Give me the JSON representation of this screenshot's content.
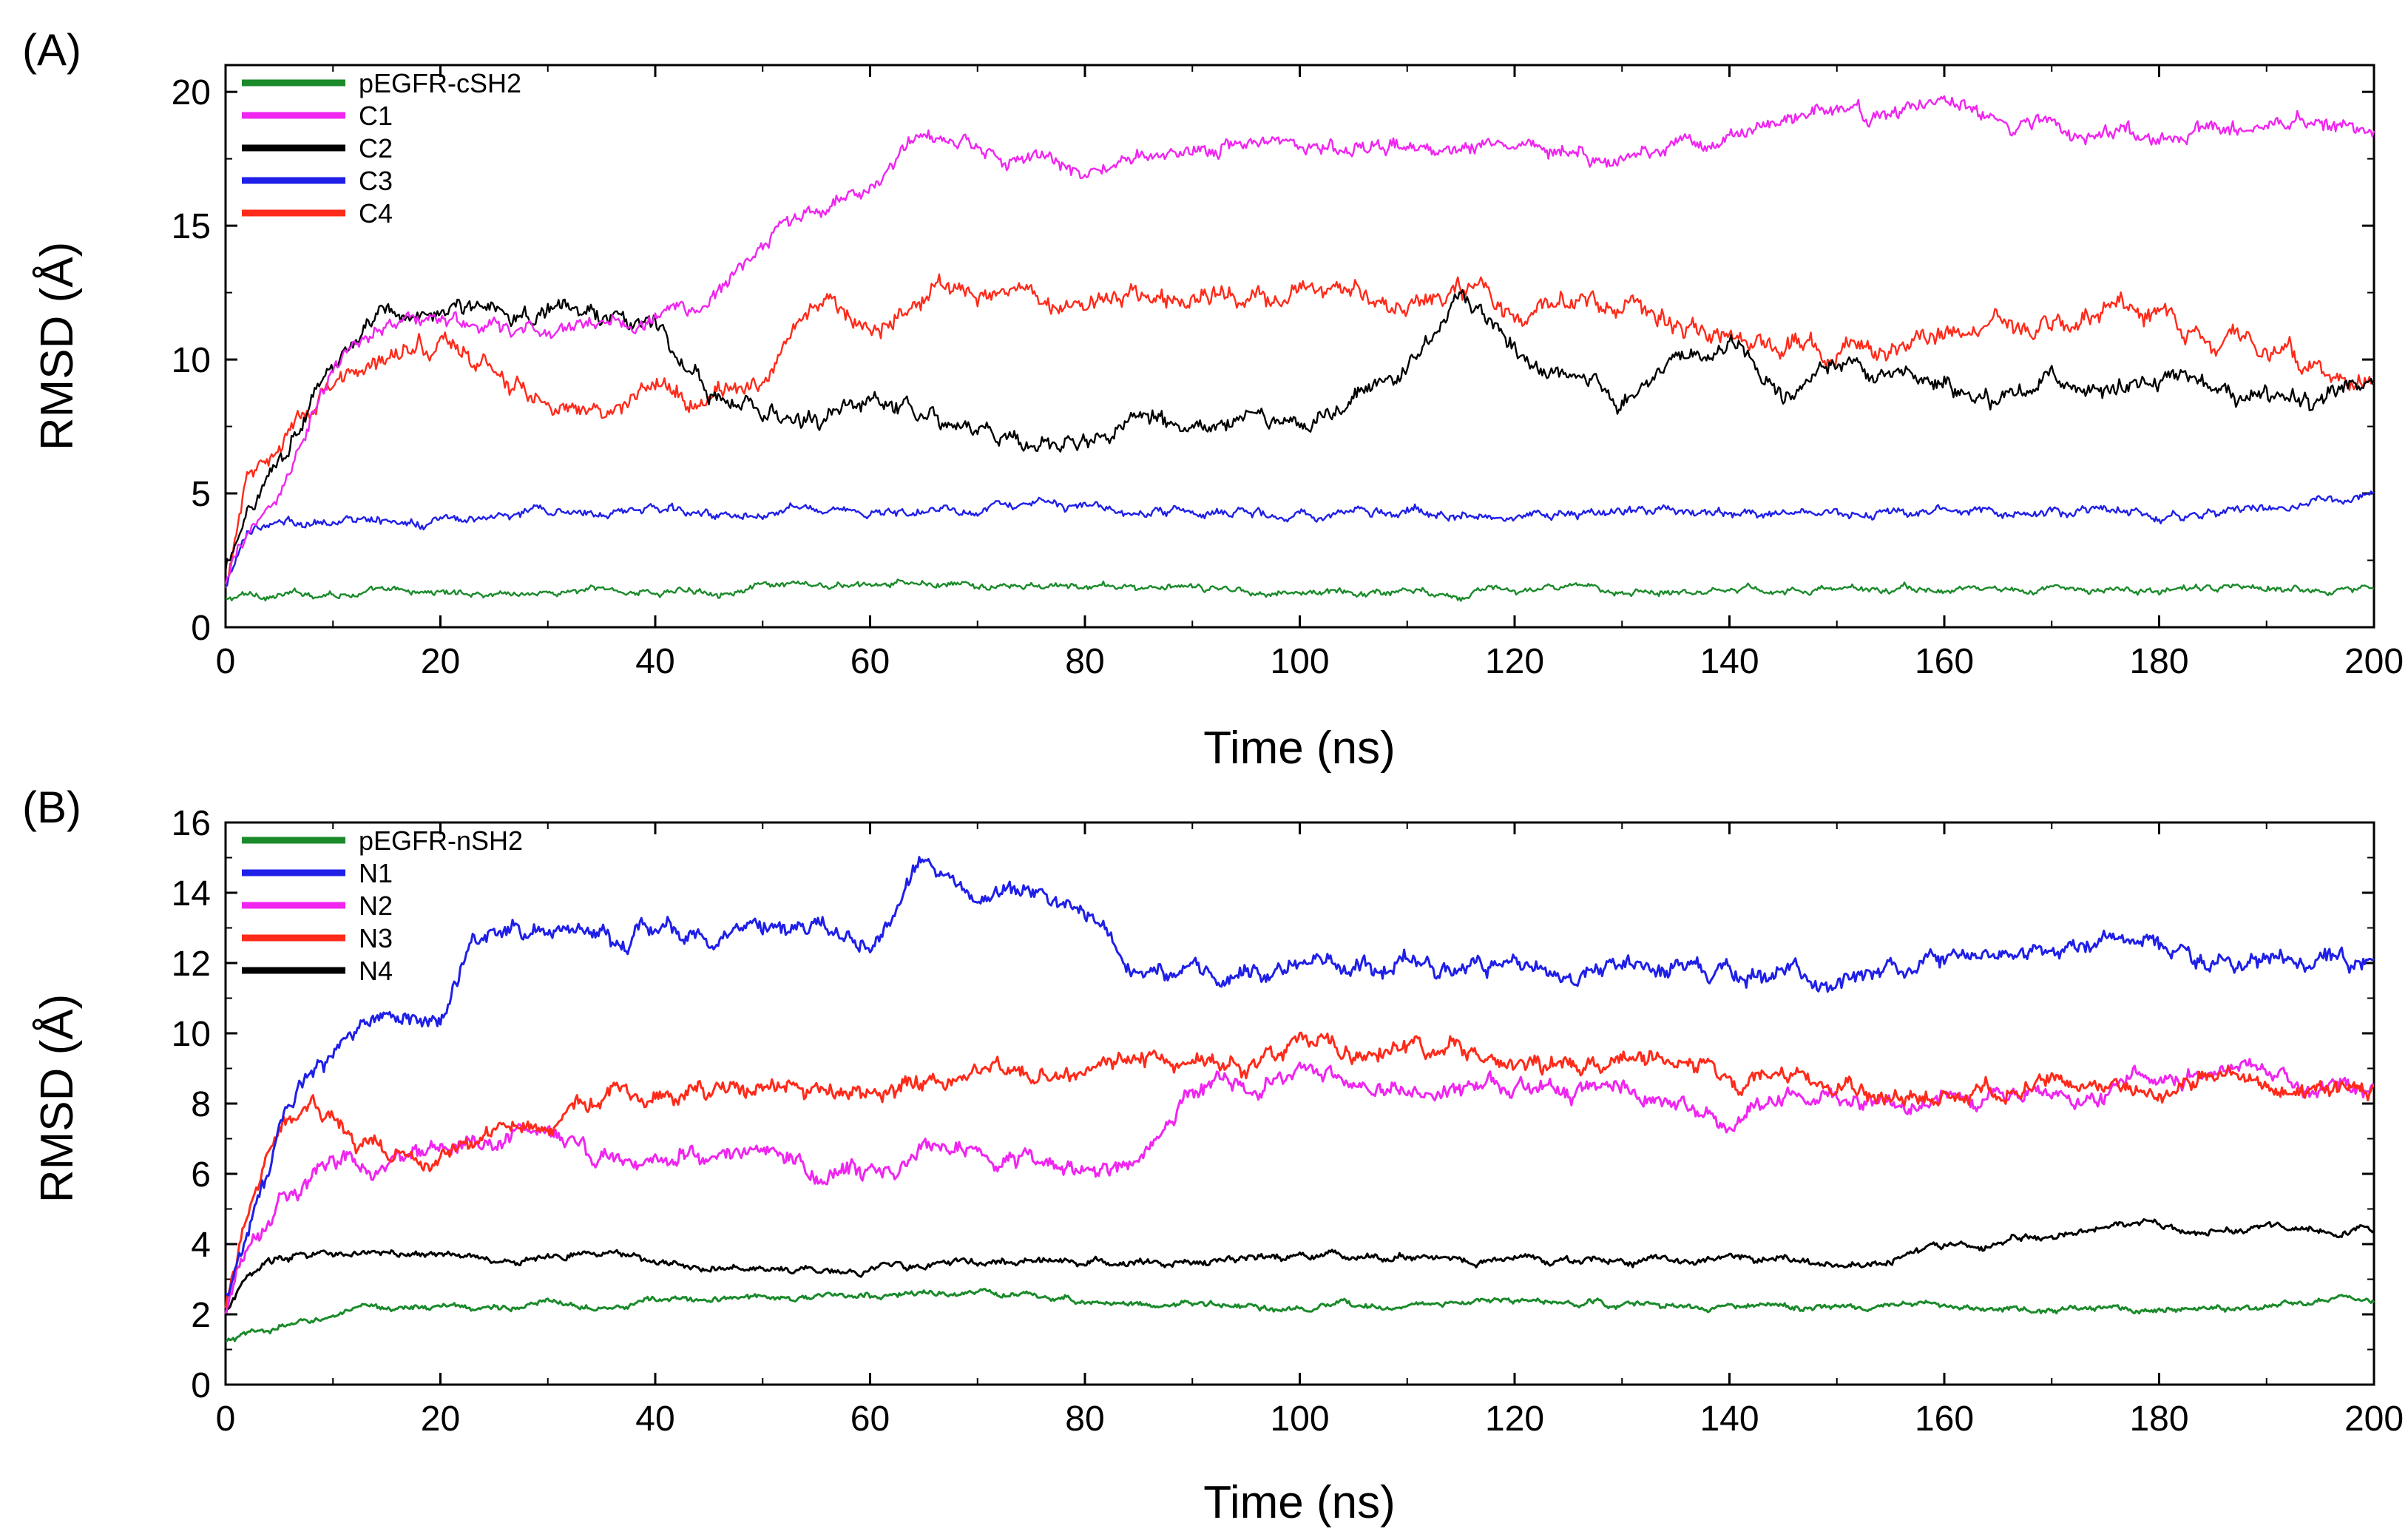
{
  "figure": {
    "panels": [
      {
        "id": "A",
        "panel_label": "(A)",
        "xlabel": "Time (ns)",
        "ylabel": "RMSD (Å)",
        "xlim": [
          0,
          200
        ],
        "ylim": [
          0,
          21
        ],
        "xticks": [
          0,
          20,
          40,
          60,
          80,
          100,
          120,
          140,
          160,
          180,
          200
        ],
        "yticks": [
          0,
          5,
          10,
          15,
          20
        ],
        "legend": [
          {
            "label": "pEGFR-cSH2",
            "color": "#1a8a2a"
          },
          {
            "label": "C1",
            "color": "#f025f0"
          },
          {
            "label": "C2",
            "color": "#000000"
          },
          {
            "label": "C3",
            "color": "#1f1fe8"
          },
          {
            "label": "C4",
            "color": "#ff2a1a"
          }
        ]
      },
      {
        "id": "B",
        "panel_label": "(B)",
        "xlabel": "Time (ns)",
        "ylabel": "RMSD (Å)",
        "xlim": [
          0,
          200
        ],
        "ylim": [
          0,
          16
        ],
        "xticks": [
          0,
          20,
          40,
          60,
          80,
          100,
          120,
          140,
          160,
          180,
          200
        ],
        "yticks": [
          0,
          2,
          4,
          6,
          8,
          10,
          12,
          14,
          16
        ],
        "legend": [
          {
            "label": "pEGFR-nSH2",
            "color": "#1a8a2a"
          },
          {
            "label": "N1",
            "color": "#1f1fe8"
          },
          {
            "label": "N2",
            "color": "#f025f0"
          },
          {
            "label": "N3",
            "color": "#ff2a1a"
          },
          {
            "label": "N4",
            "color": "#000000"
          }
        ]
      }
    ]
  },
  "chart_data": [
    {
      "type": "line",
      "title": "(A)",
      "xlabel": "Time (ns)",
      "ylabel": "RMSD (Å)",
      "xlim": [
        0,
        200
      ],
      "ylim": [
        0,
        21
      ],
      "legend_position": "top-left",
      "x": [
        0,
        2,
        5,
        10,
        15,
        20,
        25,
        30,
        35,
        40,
        45,
        50,
        55,
        60,
        65,
        70,
        75,
        80,
        85,
        90,
        95,
        100,
        105,
        110,
        115,
        120,
        125,
        130,
        135,
        140,
        145,
        150,
        155,
        160,
        165,
        170,
        175,
        180,
        185,
        190,
        195,
        200
      ],
      "series": [
        {
          "name": "pEGFR-cSH2",
          "color": "#1a8a2a",
          "noise": 0.15,
          "values": [
            1.0,
            1.2,
            1.2,
            1.3,
            1.3,
            1.3,
            1.3,
            1.3,
            1.4,
            1.3,
            1.4,
            1.5,
            1.5,
            1.5,
            1.6,
            1.5,
            1.5,
            1.5,
            1.5,
            1.4,
            1.4,
            1.3,
            1.3,
            1.4,
            1.3,
            1.4,
            1.4,
            1.4,
            1.4,
            1.5,
            1.4,
            1.4,
            1.4,
            1.4,
            1.4,
            1.4,
            1.4,
            1.4,
            1.4,
            1.4,
            1.5,
            1.5
          ]
        },
        {
          "name": "C1",
          "color": "#f025f0",
          "noise": 0.35,
          "values": [
            1.5,
            3.5,
            5.0,
            9.5,
            11.5,
            11.5,
            11.0,
            11.0,
            11.5,
            11.5,
            12.0,
            14.5,
            15.5,
            16.5,
            18.3,
            17.7,
            17.5,
            16.8,
            17.5,
            18.0,
            18.2,
            18.1,
            17.8,
            17.8,
            18.0,
            18.2,
            18.0,
            17.5,
            18.3,
            18.5,
            18.8,
            19.5,
            19.0,
            19.5,
            19.0,
            18.6,
            18.5,
            18.2,
            18.7,
            19.0,
            18.6,
            18.8
          ]
        },
        {
          "name": "C2",
          "color": "#000000",
          "noise": 0.4,
          "values": [
            2.0,
            4.5,
            6.5,
            10.0,
            11.5,
            12.0,
            11.7,
            12.0,
            11.7,
            11.5,
            8.5,
            8.0,
            7.5,
            8.5,
            7.5,
            7.5,
            7.0,
            7.0,
            8.0,
            7.0,
            7.5,
            7.5,
            8.5,
            9.5,
            12.5,
            10.5,
            9.5,
            8.5,
            10.0,
            10.5,
            8.5,
            9.5,
            9.0,
            9.0,
            8.5,
            9.0,
            9.0,
            9.0,
            9.0,
            8.5,
            8.5,
            9.0
          ]
        },
        {
          "name": "C3",
          "color": "#1f1fe8",
          "noise": 0.2,
          "values": [
            1.5,
            3.5,
            4.0,
            4.0,
            4.0,
            3.8,
            4.2,
            4.3,
            4.3,
            4.3,
            4.2,
            4.3,
            4.6,
            4.3,
            4.3,
            4.3,
            4.4,
            4.4,
            4.3,
            4.3,
            4.3,
            4.2,
            4.3,
            4.3,
            4.2,
            4.2,
            4.3,
            4.3,
            4.3,
            4.3,
            4.2,
            4.3,
            4.2,
            4.3,
            4.3,
            4.2,
            4.3,
            4.2,
            4.3,
            4.3,
            4.8,
            4.8
          ]
        },
        {
          "name": "C4",
          "color": "#ff2a1a",
          "noise": 0.45,
          "values": [
            1.5,
            5.0,
            7.0,
            9.0,
            10.0,
            10.8,
            9.5,
            8.5,
            8.0,
            8.5,
            8.5,
            9.5,
            12.0,
            11.5,
            12.5,
            12.5,
            12.5,
            12.0,
            12.5,
            12.5,
            12.5,
            12.5,
            12.5,
            12.0,
            12.5,
            12.0,
            12.0,
            12.0,
            11.5,
            11.0,
            10.5,
            10.5,
            10.5,
            11.0,
            11.5,
            11.0,
            12.0,
            11.5,
            10.5,
            10.5,
            9.5,
            9.0
          ]
        }
      ]
    },
    {
      "type": "line",
      "title": "(B)",
      "xlabel": "Time (ns)",
      "ylabel": "RMSD (Å)",
      "xlim": [
        0,
        200
      ],
      "ylim": [
        0,
        16
      ],
      "legend_position": "top-left",
      "x": [
        0,
        2,
        5,
        8,
        10,
        15,
        20,
        23,
        25,
        30,
        35,
        40,
        45,
        50,
        55,
        60,
        65,
        70,
        75,
        80,
        85,
        90,
        95,
        100,
        105,
        110,
        115,
        120,
        125,
        130,
        135,
        140,
        145,
        150,
        155,
        160,
        165,
        170,
        175,
        180,
        185,
        190,
        195,
        200
      ],
      "series": [
        {
          "name": "pEGFR-nSH2",
          "color": "#1a8a2a",
          "noise": 0.1,
          "values": [
            1.2,
            1.4,
            1.6,
            1.8,
            2.0,
            2.2,
            2.2,
            2.2,
            2.2,
            2.3,
            2.3,
            2.4,
            2.4,
            2.5,
            2.5,
            2.5,
            2.6,
            2.6,
            2.5,
            2.4,
            2.3,
            2.3,
            2.2,
            2.1,
            2.2,
            2.3,
            2.3,
            2.4,
            2.3,
            2.3,
            2.2,
            2.2,
            2.2,
            2.2,
            2.2,
            2.2,
            2.1,
            2.1,
            2.2,
            2.2,
            2.2,
            2.3,
            2.4,
            2.4
          ]
        },
        {
          "name": "N1",
          "color": "#1f1fe8",
          "noise": 0.3,
          "values": [
            2.5,
            4.5,
            7.0,
            9.0,
            9.5,
            10.5,
            10.5,
            12.5,
            13.0,
            13.0,
            12.8,
            13.0,
            12.8,
            12.8,
            13.0,
            12.5,
            14.8,
            14.0,
            14.0,
            13.5,
            11.8,
            11.8,
            11.7,
            12.0,
            11.7,
            12.2,
            12.0,
            12.0,
            12.0,
            12.0,
            11.8,
            11.8,
            12.0,
            11.5,
            11.8,
            12.0,
            12.2,
            12.2,
            12.8,
            12.5,
            12.0,
            12.0,
            12.0,
            12.0
          ]
        },
        {
          "name": "N2",
          "color": "#f025f0",
          "noise": 0.3,
          "values": [
            2.0,
            4.0,
            5.5,
            6.0,
            6.3,
            6.3,
            6.5,
            6.8,
            7.0,
            7.0,
            6.5,
            6.5,
            6.5,
            7.0,
            6.0,
            5.8,
            6.5,
            6.3,
            6.3,
            6.2,
            6.2,
            8.5,
            8.5,
            9.0,
            8.5,
            8.3,
            8.5,
            8.3,
            8.3,
            8.5,
            7.8,
            7.5,
            8.5,
            8.3,
            8.2,
            8.2,
            8.0,
            8.2,
            8.3,
            8.8,
            8.8,
            8.8,
            8.5,
            8.5
          ]
        },
        {
          "name": "N3",
          "color": "#ff2a1a",
          "noise": 0.3,
          "values": [
            2.2,
            4.5,
            7.0,
            8.0,
            7.5,
            6.5,
            6.5,
            7.0,
            7.2,
            7.5,
            7.8,
            8.3,
            8.3,
            8.5,
            8.5,
            8.3,
            8.5,
            8.8,
            8.8,
            9.0,
            9.3,
            9.0,
            9.0,
            10.0,
            9.3,
            9.5,
            9.3,
            8.8,
            9.0,
            9.3,
            9.3,
            8.5,
            8.8,
            8.3,
            8.2,
            8.2,
            8.5,
            8.8,
            8.5,
            8.3,
            8.8,
            8.5,
            8.3,
            8.5
          ]
        },
        {
          "name": "N4",
          "color": "#000000",
          "noise": 0.12,
          "values": [
            2.0,
            3.0,
            3.5,
            3.7,
            3.7,
            3.7,
            3.7,
            3.6,
            3.6,
            3.6,
            3.7,
            3.6,
            3.3,
            3.3,
            3.2,
            3.3,
            3.4,
            3.5,
            3.5,
            3.4,
            3.5,
            3.5,
            3.5,
            3.6,
            3.6,
            3.6,
            3.6,
            3.5,
            3.5,
            3.5,
            3.5,
            3.6,
            3.6,
            3.4,
            3.6,
            3.9,
            4.1,
            4.2,
            4.5,
            4.5,
            4.4,
            4.5,
            4.4,
            4.3
          ]
        }
      ]
    }
  ]
}
